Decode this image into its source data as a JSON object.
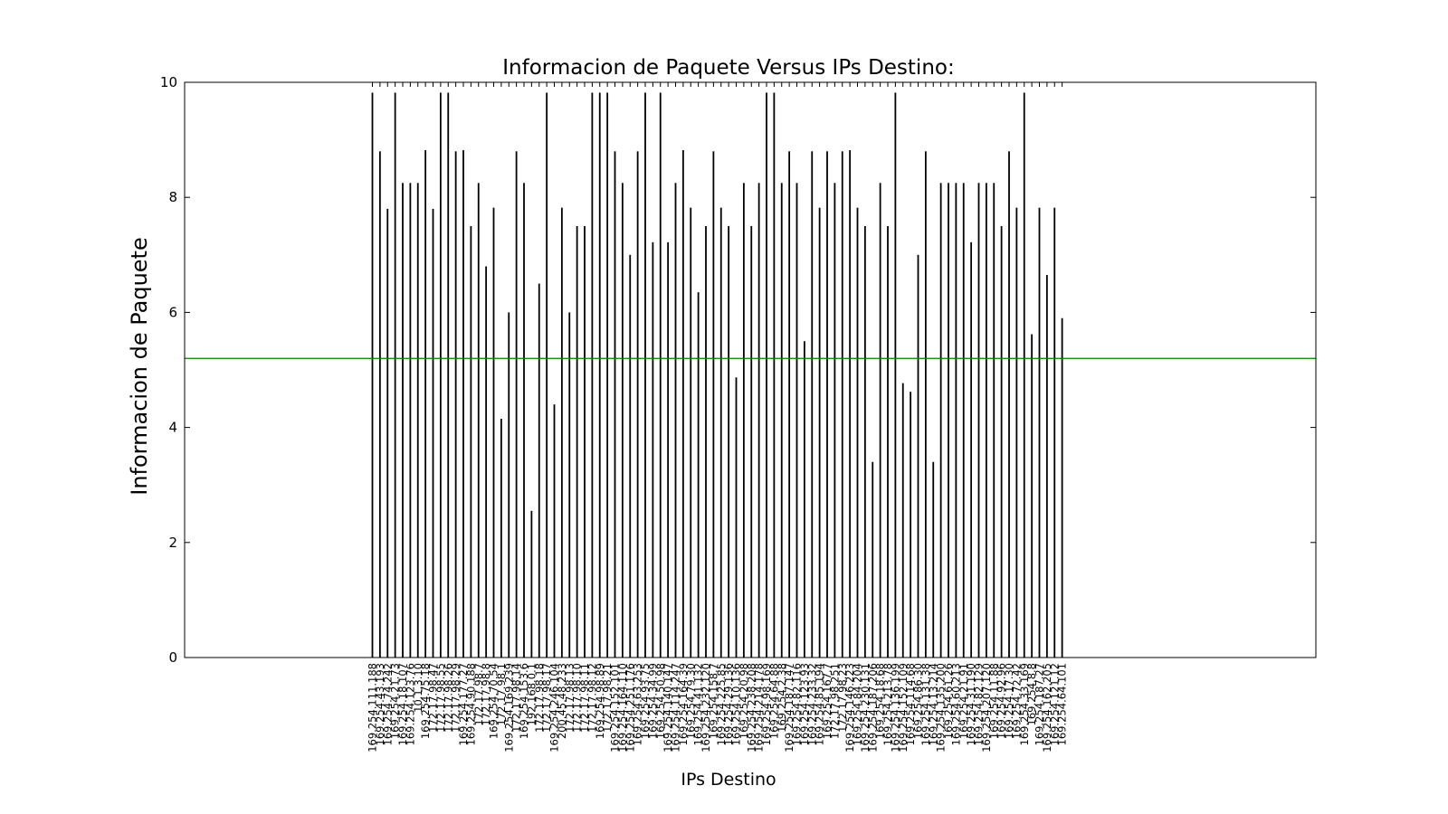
{
  "chart_data": {
    "type": "bar",
    "title": "Informacion de Paquete Versus IPs Destino:",
    "xlabel": "IPs Destino",
    "ylabel": "Informacion de Paquete",
    "ylim": [
      0,
      10
    ],
    "yticks": [
      0,
      2,
      4,
      6,
      8,
      10
    ],
    "grid": false,
    "bar_color": "#000000",
    "reference_line": {
      "value": 5.2,
      "color": "#008000"
    },
    "categories": [
      "169.254.111.188",
      "169.254.43.193",
      "169.254.74.242",
      "169.254.21.73",
      "169.254.18.107",
      "169.254.123.76",
      "10.1.3.10",
      "169.254.75.18",
      "172.17.98.47",
      "172.17.98.55",
      "172.17.98.26",
      "172.17.98.29",
      "169.254.177.27",
      "169.254.90.188",
      "172.17.98.7",
      "172.17.98.8",
      "169.254.70.54",
      "172.17.98.1",
      "169.254.169.239",
      "172.17.98.14",
      "169.254.153.6",
      "192.168.0.1",
      "172.17.98.18",
      "172.17.98.17",
      "169.254.246.104",
      "200.45.48.233",
      "172.17.98.13",
      "172.17.98.10",
      "172.17.98.11",
      "172.17.98.12",
      "169.254.98.89",
      "172.17.98.21",
      "169.254.152.101",
      "169.254.164.110",
      "169.254.251.176",
      "169.254.63.253",
      "169.254.93.75",
      "169.254.34.99",
      "169.254.50.98",
      "169.254.140.147",
      "169.254.114.247",
      "169.254.164.39",
      "169.254.79.30",
      "169.254.41.132",
      "169.254.232.120",
      "169.254.158.7",
      "169.254.225.85",
      "169.254.29.136",
      "169.254.10.136",
      "169.254.20.98",
      "169.254.238.208",
      "169.254.214.178",
      "169.254.98.169",
      "169.254.64.88",
      "169.254.2.38",
      "169.254.187.147",
      "169.254.82.116",
      "169.254.123.93",
      "169.254.233.32",
      "169.254.85.194",
      "169.254.167.7",
      "172.17.98.251",
      "172.17.98.23",
      "169.254.146.223",
      "169.254.84.204",
      "169.254.230.131",
      "169.254.187.206",
      "169.254.18.68",
      "169.254.213.78",
      "169.254.136.199",
      "169.254.152.109",
      "169.254.114.68",
      "169.254.86.30",
      "169.254.131.38",
      "169.254.13.214",
      "169.254.135.200",
      "169.254.61.26",
      "169.254.60.213",
      "169.254.21.91",
      "169.254.31.190",
      "169.254.82.129",
      "169.254.207.120",
      "169.254.11.88",
      "169.254.92.96",
      "169.254.17.30",
      "169.254.72.42",
      "169.254.33.169",
      "169.254.8.8",
      "169.254.187.27",
      "169.254.162.205",
      "169.254.121.12",
      "169.254.64.101"
    ],
    "values": [
      9.82,
      8.8,
      7.8,
      9.82,
      8.25,
      8.25,
      8.25,
      8.82,
      7.8,
      9.82,
      9.82,
      8.8,
      8.82,
      7.5,
      8.25,
      6.8,
      7.82,
      4.15,
      6.0,
      8.8,
      8.25,
      2.55,
      6.5,
      9.82,
      4.4,
      7.82,
      6.0,
      7.5,
      7.5,
      9.82,
      9.82,
      9.82,
      8.8,
      8.25,
      7.0,
      8.8,
      9.82,
      7.22,
      9.82,
      7.22,
      8.25,
      8.82,
      7.82,
      6.35,
      7.5,
      8.8,
      7.82,
      7.5,
      4.87,
      8.25,
      7.5,
      8.25,
      9.82,
      9.82,
      8.25,
      8.8,
      8.25,
      5.5,
      8.8,
      7.82,
      8.8,
      8.25,
      8.8,
      8.82,
      7.82,
      7.5,
      3.4,
      8.25,
      7.5,
      9.82,
      4.77,
      4.62,
      7.0,
      8.8,
      3.4,
      8.25,
      8.25,
      8.25,
      8.25,
      7.22,
      8.25,
      8.25,
      8.25,
      7.5,
      8.8,
      7.82,
      9.82,
      5.62,
      7.82,
      6.65,
      7.82,
      5.9
    ]
  }
}
